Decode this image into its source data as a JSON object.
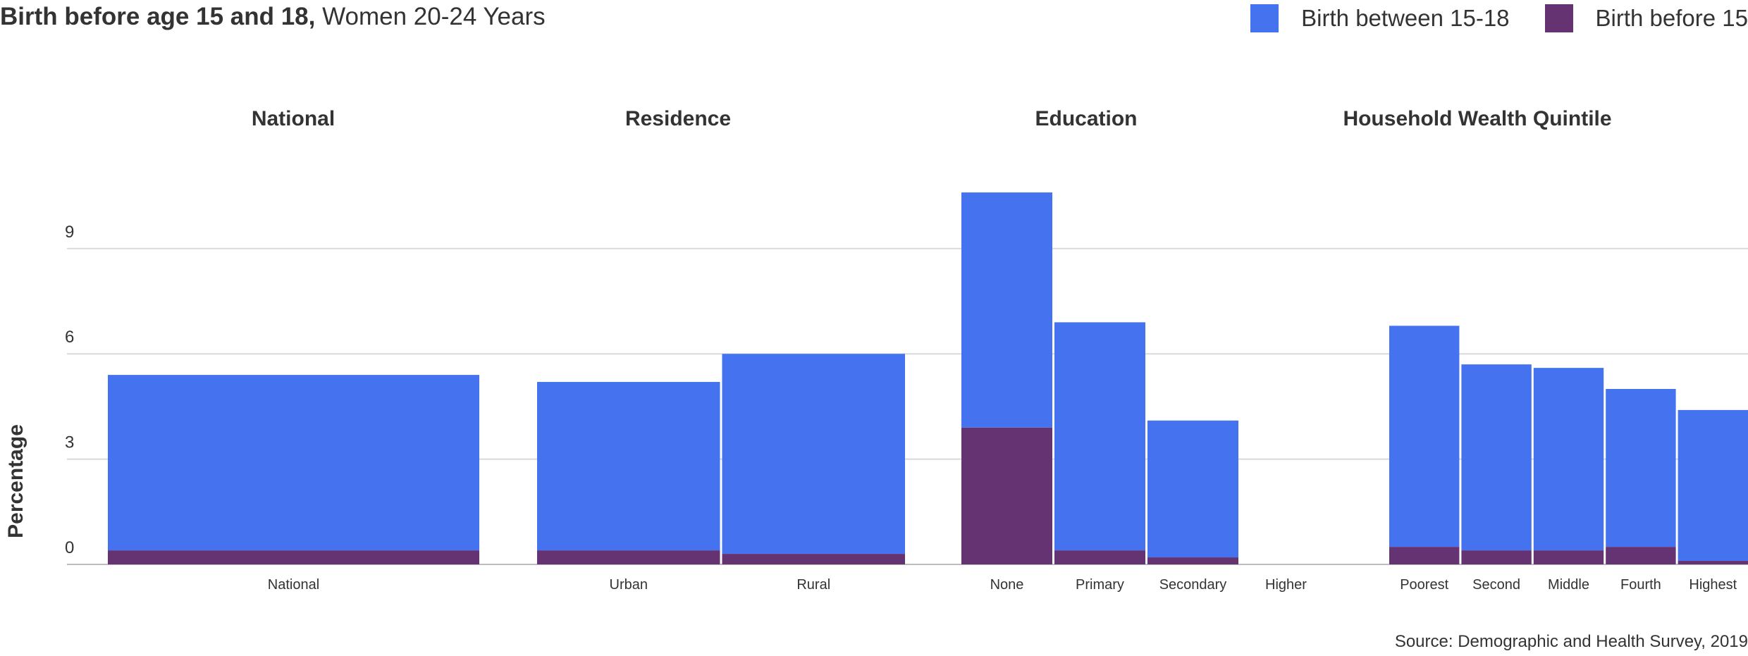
{
  "title": {
    "bold": "Birth before age 15 and 18,",
    "normal": " Women 20-24 Years"
  },
  "legend": [
    {
      "label": "Birth between 15-18",
      "color": "#4572EE"
    },
    {
      "label": "Birth before 15",
      "color": "#663372"
    }
  ],
  "source": "Source: Demographic and Health Survey, 2019",
  "chart_data": {
    "type": "bar",
    "stacked": true,
    "ylabel": "Percentage",
    "ylim": [
      0,
      12
    ],
    "yticks": [
      0,
      3,
      6,
      9
    ],
    "grid": true,
    "legend_position": "top-right",
    "groups": [
      {
        "name": "National",
        "categories": [
          "National"
        ],
        "series": [
          {
            "name": "Birth before 15",
            "values": [
              0.4
            ]
          },
          {
            "name": "Birth between 15-18",
            "values": [
              5.0
            ]
          }
        ]
      },
      {
        "name": "Residence",
        "categories": [
          "Urban",
          "Rural"
        ],
        "series": [
          {
            "name": "Birth before 15",
            "values": [
              0.4,
              0.3
            ]
          },
          {
            "name": "Birth between 15-18",
            "values": [
              4.8,
              5.7
            ]
          }
        ]
      },
      {
        "name": "Education",
        "categories": [
          "None",
          "Primary",
          "Secondary",
          "Higher"
        ],
        "series": [
          {
            "name": "Birth before 15",
            "values": [
              3.9,
              0.4,
              0.2,
              0
            ]
          },
          {
            "name": "Birth between 15-18",
            "values": [
              6.7,
              6.5,
              3.9,
              0
            ]
          }
        ]
      },
      {
        "name": "Household Wealth Quintile",
        "categories": [
          "Poorest",
          "Second",
          "Middle",
          "Fourth",
          "Highest"
        ],
        "series": [
          {
            "name": "Birth before 15",
            "values": [
              0.5,
              0.4,
              0.4,
              0.5,
              0.1
            ]
          },
          {
            "name": "Birth between 15-18",
            "values": [
              6.3,
              5.3,
              5.2,
              4.5,
              4.3
            ]
          }
        ]
      }
    ]
  }
}
